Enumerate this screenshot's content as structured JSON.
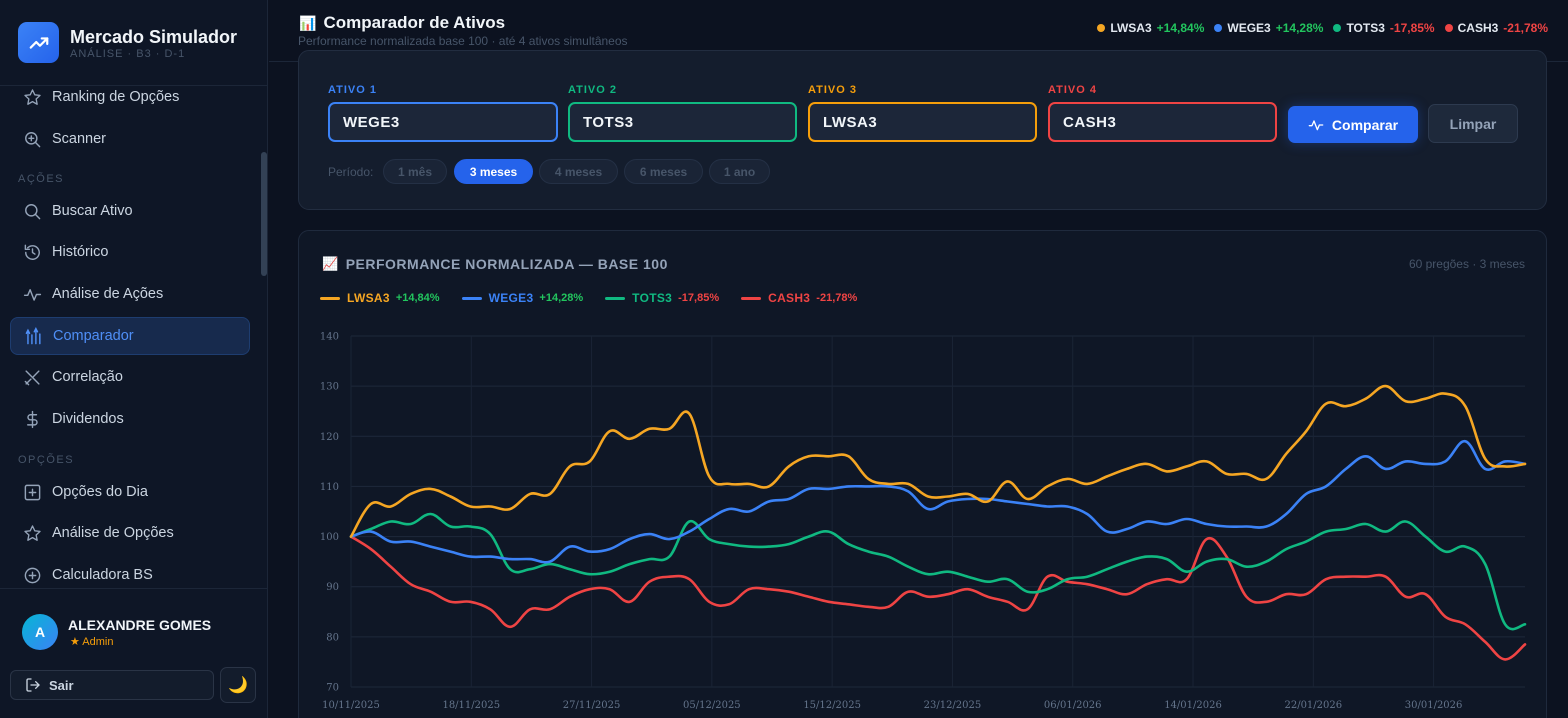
{
  "brand": {
    "title": "Mercado Simulador",
    "subtitle": "ANÁLISE · B3 · D-1",
    "logo_icon": "trend-icon"
  },
  "sidebar": {
    "items": [
      {
        "label": "Ranking de Opções",
        "icon": "star-icon"
      },
      {
        "label": "Scanner",
        "icon": "zoom-in-icon"
      }
    ],
    "sections": [
      {
        "title": "AÇÕES",
        "items": [
          {
            "label": "Buscar Ativo",
            "icon": "search-icon"
          },
          {
            "label": "Histórico",
            "icon": "history-icon"
          },
          {
            "label": "Análise de Ações",
            "icon": "activity-icon"
          },
          {
            "label": "Comparador",
            "icon": "compare-icon",
            "active": true
          },
          {
            "label": "Correlação",
            "icon": "scissors-icon"
          },
          {
            "label": "Dividendos",
            "icon": "dollar-icon"
          }
        ]
      },
      {
        "title": "OPÇÕES",
        "items": [
          {
            "label": "Opções do Dia",
            "icon": "plus-square-icon"
          },
          {
            "label": "Análise de Opções",
            "icon": "star-icon"
          },
          {
            "label": "Calculadora BS",
            "icon": "plus-circle-icon"
          }
        ]
      }
    ]
  },
  "user": {
    "initial": "A",
    "name": "ALEXANDRE GOMES",
    "role": "★ Admin",
    "logout_label": "Sair",
    "theme_icon": "🌙"
  },
  "header": {
    "icon": "📊",
    "title": "Comparador de Ativos",
    "subtitle": "Performance normalizada base 100 · até 4 ativos simultâneos",
    "summary": [
      {
        "code": "LWSA3",
        "change": "+14,84%",
        "color": "#f5a623",
        "change_color": "#22c55e"
      },
      {
        "code": "WEGE3",
        "change": "+14,28%",
        "color": "#3b82f6",
        "change_color": "#22c55e"
      },
      {
        "code": "TOTS3",
        "change": "-17,85%",
        "color": "#10b981",
        "change_color": "#ef4444"
      },
      {
        "code": "CASH3",
        "change": "-21,78%",
        "color": "#ef4444",
        "change_color": "#ef4444"
      }
    ]
  },
  "selector": {
    "fields": [
      {
        "label": "ATIVO 1",
        "value": "WEGE3",
        "color": "#3b82f6"
      },
      {
        "label": "ATIVO 2",
        "value": "TOTS3",
        "color": "#10b981"
      },
      {
        "label": "ATIVO 3",
        "value": "LWSA3",
        "color": "#f59e0b"
      },
      {
        "label": "ATIVO 4",
        "value": "CASH3",
        "color": "#ef4444"
      }
    ],
    "compare_label": "Comparar",
    "clear_label": "Limpar",
    "period_label": "Período:",
    "periods": [
      "1 mês",
      "3 meses",
      "4 meses",
      "6 meses",
      "1 ano"
    ],
    "active_period": "3 meses"
  },
  "chart_card": {
    "icon": "📈",
    "title": "PERFORMANCE NORMALIZADA — BASE 100",
    "meta": "60 pregões · 3 meses"
  },
  "chart_data": {
    "type": "line",
    "ylim": [
      70,
      140
    ],
    "yticks": [
      70,
      80,
      90,
      100,
      110,
      120,
      130,
      140
    ],
    "xticks": [
      "10/11/2025",
      "18/11/2025",
      "27/11/2025",
      "05/12/2025",
      "15/12/2025",
      "23/12/2025",
      "06/01/2026",
      "14/01/2026",
      "22/01/2026",
      "30/01/2026"
    ],
    "grid": true,
    "legend_position": "top-left",
    "series": [
      {
        "name": "LWSA3",
        "change": "+14,84%",
        "color": "#f5a623",
        "change_color": "#22c55e",
        "values": [
          100,
          106.5,
          106,
          108.5,
          109.5,
          108,
          106,
          106,
          105.5,
          108.5,
          108.5,
          114,
          115,
          121,
          119.5,
          121.5,
          121.5,
          124.5,
          112,
          110.5,
          110.5,
          110,
          114,
          116,
          116,
          116,
          111.5,
          110.5,
          110.5,
          108,
          108,
          108.5,
          107,
          111,
          107.5,
          110,
          111.5,
          110.5,
          112,
          113.5,
          114.5,
          113,
          114,
          115,
          112.5,
          112.5,
          111.5,
          116.5,
          121,
          126.5,
          126,
          127.5,
          130,
          127,
          127.5,
          128.5,
          126,
          115.5,
          114,
          114.5
        ]
      },
      {
        "name": "WEGE3",
        "change": "+14,28%",
        "color": "#3b82f6",
        "change_color": "#22c55e",
        "values": [
          100,
          101,
          99,
          99,
          98,
          97,
          96,
          96,
          95.5,
          95.5,
          95,
          98,
          97,
          97.5,
          99.5,
          100.5,
          99.5,
          101,
          103.5,
          105.5,
          105,
          107,
          107.5,
          109.5,
          109.5,
          110,
          110,
          110,
          109,
          105.5,
          107,
          107.5,
          107.5,
          107,
          106.5,
          106,
          106,
          104.5,
          101,
          101.5,
          103,
          102.5,
          103.5,
          102.5,
          102,
          102,
          102,
          104.5,
          108.5,
          110,
          113.5,
          116,
          113.5,
          115,
          114.5,
          115,
          119,
          113.5,
          115,
          114.5
        ]
      },
      {
        "name": "TOTS3",
        "change": "-17,85%",
        "color": "#10b981",
        "change_color": "#ef4444",
        "values": [
          100,
          101.5,
          103,
          102.5,
          104.5,
          102,
          102,
          100.5,
          93.5,
          93.5,
          94.5,
          93.5,
          92.5,
          93,
          94.5,
          95.5,
          96,
          103,
          99.5,
          98.5,
          98,
          98,
          98.5,
          100,
          101,
          98.5,
          97,
          96,
          94,
          92.5,
          93,
          92,
          91,
          91.5,
          89,
          89.5,
          91.5,
          92,
          93.5,
          95,
          96,
          95.5,
          93,
          95,
          95.5,
          94,
          95,
          97.5,
          99,
          101,
          101.5,
          102.5,
          101,
          103,
          100,
          97,
          98,
          94.5,
          82.5,
          82.5
        ]
      },
      {
        "name": "CASH3",
        "change": "-21,78%",
        "color": "#ef4444",
        "change_color": "#ef4444",
        "values": [
          100,
          97.5,
          94,
          90.5,
          89,
          87,
          87,
          85.5,
          82,
          85.5,
          85.5,
          88,
          89.5,
          89.5,
          87,
          91,
          92,
          91.5,
          87,
          86.5,
          89.5,
          89.5,
          89,
          88,
          87,
          86.5,
          86,
          86,
          89,
          88,
          88.5,
          89.5,
          88,
          87,
          85.5,
          92,
          91,
          90.5,
          89.5,
          88.5,
          90.5,
          91.5,
          91.5,
          99.5,
          96,
          88,
          87,
          88.5,
          88.5,
          91.5,
          92,
          92,
          92,
          88,
          88.5,
          84,
          82.5,
          79,
          75.5,
          78.5
        ]
      }
    ]
  }
}
